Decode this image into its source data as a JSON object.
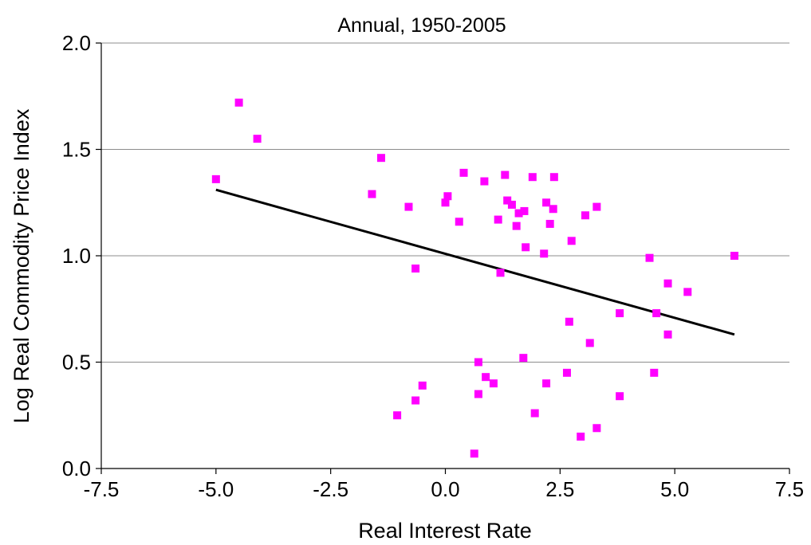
{
  "chart_data": {
    "type": "scatter",
    "title": "Annual, 1950-2005",
    "xlabel": "Real Interest Rate",
    "ylabel": "Log Real Commodity Price Index",
    "xlim": [
      -7.5,
      7.5
    ],
    "ylim": [
      0.0,
      2.0
    ],
    "x_ticks": [
      "-7.5",
      "-5.0",
      "-2.5",
      "0.0",
      "2.5",
      "5.0",
      "7.5"
    ],
    "y_ticks": [
      "0.0",
      "0.5",
      "1.0",
      "1.5",
      "2.0"
    ],
    "grid": "horizontal",
    "legend": "none",
    "marker_color": "#ff00ff",
    "trendline_color": "#000000",
    "points": [
      [
        -5.0,
        1.36
      ],
      [
        -4.5,
        1.72
      ],
      [
        -4.1,
        1.55
      ],
      [
        -1.6,
        1.29
      ],
      [
        -1.4,
        1.46
      ],
      [
        -0.8,
        1.23
      ],
      [
        -0.65,
        0.94
      ],
      [
        0.0,
        1.25
      ],
      [
        0.05,
        1.28
      ],
      [
        0.3,
        1.16
      ],
      [
        0.4,
        1.39
      ],
      [
        0.85,
        1.35
      ],
      [
        1.15,
        1.17
      ],
      [
        1.2,
        0.92
      ],
      [
        1.3,
        1.38
      ],
      [
        1.35,
        1.26
      ],
      [
        1.45,
        1.24
      ],
      [
        1.55,
        1.14
      ],
      [
        1.6,
        1.2
      ],
      [
        1.72,
        1.21
      ],
      [
        1.75,
        1.04
      ],
      [
        1.9,
        1.37
      ],
      [
        2.15,
        1.01
      ],
      [
        2.2,
        1.25
      ],
      [
        2.28,
        1.15
      ],
      [
        2.35,
        1.22
      ],
      [
        2.37,
        1.37
      ],
      [
        2.75,
        1.07
      ],
      [
        3.05,
        1.19
      ],
      [
        3.3,
        1.23
      ],
      [
        4.45,
        0.99
      ],
      [
        4.85,
        0.87
      ],
      [
        5.28,
        0.83
      ],
      [
        6.3,
        1.0
      ],
      [
        3.8,
        0.73
      ],
      [
        4.6,
        0.73
      ],
      [
        4.85,
        0.63
      ],
      [
        2.7,
        0.69
      ],
      [
        3.15,
        0.59
      ],
      [
        1.7,
        0.52
      ],
      [
        0.72,
        0.5
      ],
      [
        0.88,
        0.43
      ],
      [
        1.05,
        0.4
      ],
      [
        2.2,
        0.4
      ],
      [
        2.65,
        0.45
      ],
      [
        4.55,
        0.45
      ],
      [
        -0.5,
        0.39
      ],
      [
        -0.65,
        0.32
      ],
      [
        0.72,
        0.35
      ],
      [
        3.8,
        0.34
      ],
      [
        -1.05,
        0.25
      ],
      [
        1.95,
        0.26
      ],
      [
        2.95,
        0.15
      ],
      [
        3.3,
        0.19
      ],
      [
        0.63,
        0.07
      ]
    ],
    "trendline": {
      "x": [
        -5.0,
        6.3
      ],
      "y": [
        1.31,
        0.63
      ]
    }
  }
}
